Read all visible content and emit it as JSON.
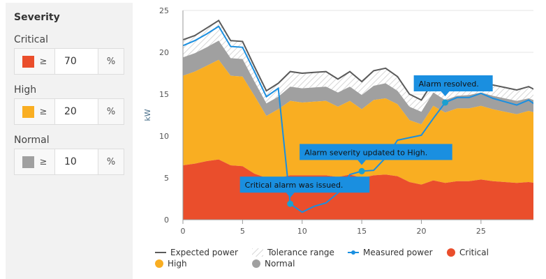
{
  "panel": {
    "title": "Severity",
    "levels": [
      {
        "label": "Critical",
        "color": "#ea4e2c",
        "op": "≥",
        "value": "70",
        "unit": "%"
      },
      {
        "label": "High",
        "color": "#f9ae22",
        "op": "≥",
        "value": "20",
        "unit": "%"
      },
      {
        "label": "Normal",
        "color": "#a0a0a0",
        "op": "≥",
        "value": "10",
        "unit": "%"
      }
    ]
  },
  "chart_data": {
    "type": "area",
    "ylabel": "kW",
    "xlim": [
      0,
      29.4
    ],
    "ylim": [
      0,
      25
    ],
    "xticks": [
      "0",
      "5",
      "10",
      "15",
      "20",
      "25"
    ],
    "yticks": [
      "0",
      "5",
      "10",
      "15",
      "20",
      "25"
    ],
    "grid": true,
    "legend_position": "bottom",
    "x": [
      0,
      1,
      2,
      3,
      4,
      5,
      6,
      7,
      8,
      9,
      10,
      11,
      12,
      13,
      14,
      15,
      16,
      17,
      18,
      19,
      20,
      21,
      22,
      23,
      24,
      25,
      26,
      27,
      28,
      29,
      30
    ],
    "series": [
      {
        "name": "Critical",
        "kind": "area",
        "color": "#ea4e2c",
        "values": [
          6.5,
          6.7,
          7.0,
          7.2,
          6.5,
          6.4,
          5.5,
          5.0,
          5.0,
          5.3,
          5.3,
          5.3,
          5.3,
          5.1,
          5.4,
          5.0,
          5.3,
          5.4,
          5.2,
          4.5,
          4.2,
          4.7,
          4.4,
          4.6,
          4.6,
          4.8,
          4.6,
          4.5,
          4.4,
          4.5,
          4.3
        ]
      },
      {
        "name": "High",
        "kind": "area",
        "color": "#f9ae22",
        "values": [
          17.2,
          17.7,
          18.4,
          19.1,
          17.2,
          17.1,
          14.8,
          12.4,
          13.2,
          14.2,
          14.0,
          14.1,
          14.2,
          13.5,
          14.2,
          13.2,
          14.3,
          14.5,
          13.8,
          11.9,
          11.4,
          13.6,
          12.8,
          13.3,
          13.3,
          13.6,
          13.2,
          12.9,
          12.6,
          13.0,
          12.6
        ]
      },
      {
        "name": "Normal",
        "kind": "area",
        "color": "#a0a0a0",
        "values": [
          19.4,
          19.9,
          20.6,
          21.4,
          19.3,
          19.2,
          16.5,
          13.9,
          14.7,
          15.9,
          15.7,
          15.8,
          15.9,
          15.2,
          15.9,
          14.9,
          16.0,
          16.3,
          15.4,
          13.5,
          12.9,
          15.2,
          14.3,
          14.8,
          14.9,
          15.2,
          14.8,
          14.5,
          14.2,
          14.5,
          14.0
        ]
      },
      {
        "name": "Expected power",
        "kind": "line",
        "color": "#5a5a5a",
        "values": [
          21.5,
          22.0,
          22.9,
          23.8,
          21.4,
          21.3,
          18.3,
          15.4,
          16.3,
          17.7,
          17.5,
          17.6,
          17.7,
          16.8,
          17.7,
          16.5,
          17.8,
          18.1,
          17.1,
          15.0,
          14.3,
          16.5,
          15.8,
          16.4,
          16.4,
          16.4,
          16.1,
          15.8,
          15.5,
          15.9,
          15.2
        ]
      },
      {
        "name": "Tolerance range",
        "kind": "hatched-band",
        "color": "#cccccc"
      },
      {
        "name": "Measured power",
        "kind": "line",
        "color": "#1a8fe0",
        "values": [
          20.8,
          21.4,
          22.2,
          23.1,
          20.7,
          20.6,
          17.7,
          14.7,
          15.7,
          1.9,
          0.9,
          1.6,
          2.0,
          3.2,
          5.4,
          5.8,
          5.9,
          7.4,
          9.5,
          9.8,
          10.1,
          12.1,
          14.0,
          14.6,
          14.6,
          15.1,
          14.5,
          14.1,
          13.7,
          14.3,
          13.3
        ]
      }
    ],
    "annotations": [
      {
        "x": 9,
        "y": 1.9,
        "text": "Critical alarm was issued."
      },
      {
        "x": 15,
        "y": 5.8,
        "text": "Alarm severity updated to High."
      },
      {
        "x": 22,
        "y": 14.0,
        "text": "Alarm resolved."
      }
    ],
    "legend": [
      "Expected power",
      "Tolerance range",
      "Measured power",
      "Critical",
      "High",
      "Normal"
    ]
  }
}
